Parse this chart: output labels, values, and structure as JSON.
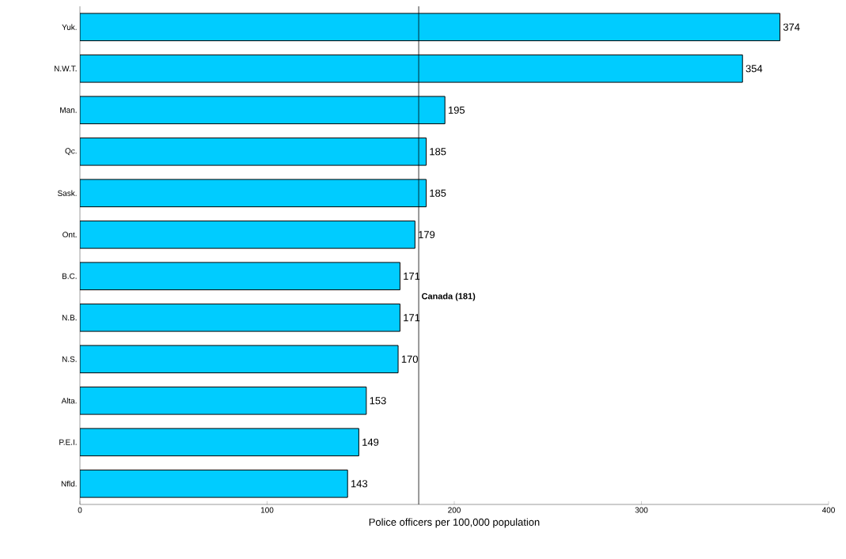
{
  "chart_data": {
    "type": "bar",
    "orientation": "horizontal",
    "xlabel": "Police officers per 100,000 population",
    "categories": [
      "Yuk.",
      "N.W.T.",
      "Man.",
      "Qc.",
      "Sask.",
      "Ont.",
      "B.C.",
      "N.B.",
      "N.S.",
      "Alta.",
      "P.E.I.",
      "Nfld."
    ],
    "values": [
      374,
      354,
      195,
      185,
      185,
      179,
      171,
      171,
      170,
      153,
      149,
      143
    ],
    "color": "#00ccff",
    "data_labels": true,
    "xlim": [
      0,
      400
    ],
    "xticks": [
      0,
      100,
      200,
      300,
      400
    ],
    "ref_lines": [
      {
        "axis": "x",
        "value": 181,
        "label": "Canada (181)",
        "color": "#000000"
      }
    ]
  }
}
